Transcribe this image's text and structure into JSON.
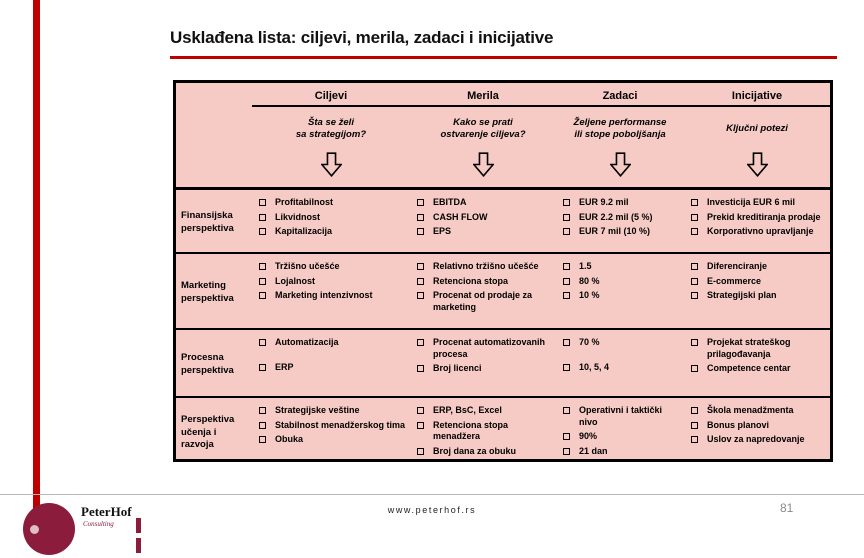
{
  "title": "Usklađena lista: ciljevi, merila, zadaci i inicijative",
  "colors": {
    "accent_red": "#c00000",
    "table_background": "#f7cbc5",
    "table_border": "#000000",
    "logo_maroon": "#8b1c3c",
    "page_number_gray": "#8a8a8a"
  },
  "table": {
    "columns": [
      {
        "label": "Ciljevi",
        "question": "Šta se želi\nsa strategijom?"
      },
      {
        "label": "Merila",
        "question": "Kako se prati\nostvarenje ciljeva?"
      },
      {
        "label": "Zadaci",
        "question": "Željene performanse\nili stope poboljšanja"
      },
      {
        "label": "Inicijative",
        "question": "Ključni potezi"
      }
    ],
    "rows": [
      {
        "label": "Finansijska perspektiva",
        "ciljevi": [
          "Profitabilnost",
          "Likvidnost",
          "Kapitalizacija"
        ],
        "merila": [
          "EBITDA",
          "CASH FLOW",
          "EPS"
        ],
        "zadaci": [
          "EUR 9.2 mil",
          "EUR 2.2 mil (5 %)",
          "EUR 7 mil (10 %)"
        ],
        "inicijative": [
          "Investicija EUR 6 mil",
          "Prekid kreditiranja prodaje",
          "Korporativno upravljanje"
        ]
      },
      {
        "label": "Marketing perspektiva",
        "ciljevi": [
          "Tržišno učešće",
          "Lojalnost",
          "Marketing intenzivnost"
        ],
        "merila": [
          "Relativno tržišno učešće",
          "Retenciona stopa",
          "Procenat od prodaje za marketing"
        ],
        "zadaci": [
          "1.5",
          "80 %",
          "10 %"
        ],
        "inicijative": [
          "Diferenciranje",
          "E-commerce",
          "Strategijski plan"
        ]
      },
      {
        "label": "Procesna perspektiva",
        "ciljevi": [
          "Automatizacija",
          "ERP"
        ],
        "merila": [
          "Procenat automatizovanih procesa",
          "Broj licenci"
        ],
        "zadaci": [
          "70 %",
          "10, 5, 4"
        ],
        "inicijative": [
          "Projekat strateškog prilagođavanja",
          "Competence centar"
        ]
      },
      {
        "label": "Perspektiva učenja i razvoja",
        "ciljevi": [
          "Strategijske veštine",
          "Stabilnost menadžerskog tima",
          "Obuka"
        ],
        "merila": [
          "ERP, BsC, Excel",
          "Retenciona stopa menadžera",
          "Broj dana za obuku"
        ],
        "zadaci": [
          "Operativni i taktički nivo",
          "90%",
          "21 dan"
        ],
        "inicijative": [
          "Škola menadžmenta",
          "Bonus planovi",
          "Uslov za napredovanje"
        ]
      }
    ]
  },
  "footer": {
    "url": "www.peterhof.rs",
    "page": "81",
    "logo_name": "PeterHof",
    "logo_sub": "Consulting"
  }
}
